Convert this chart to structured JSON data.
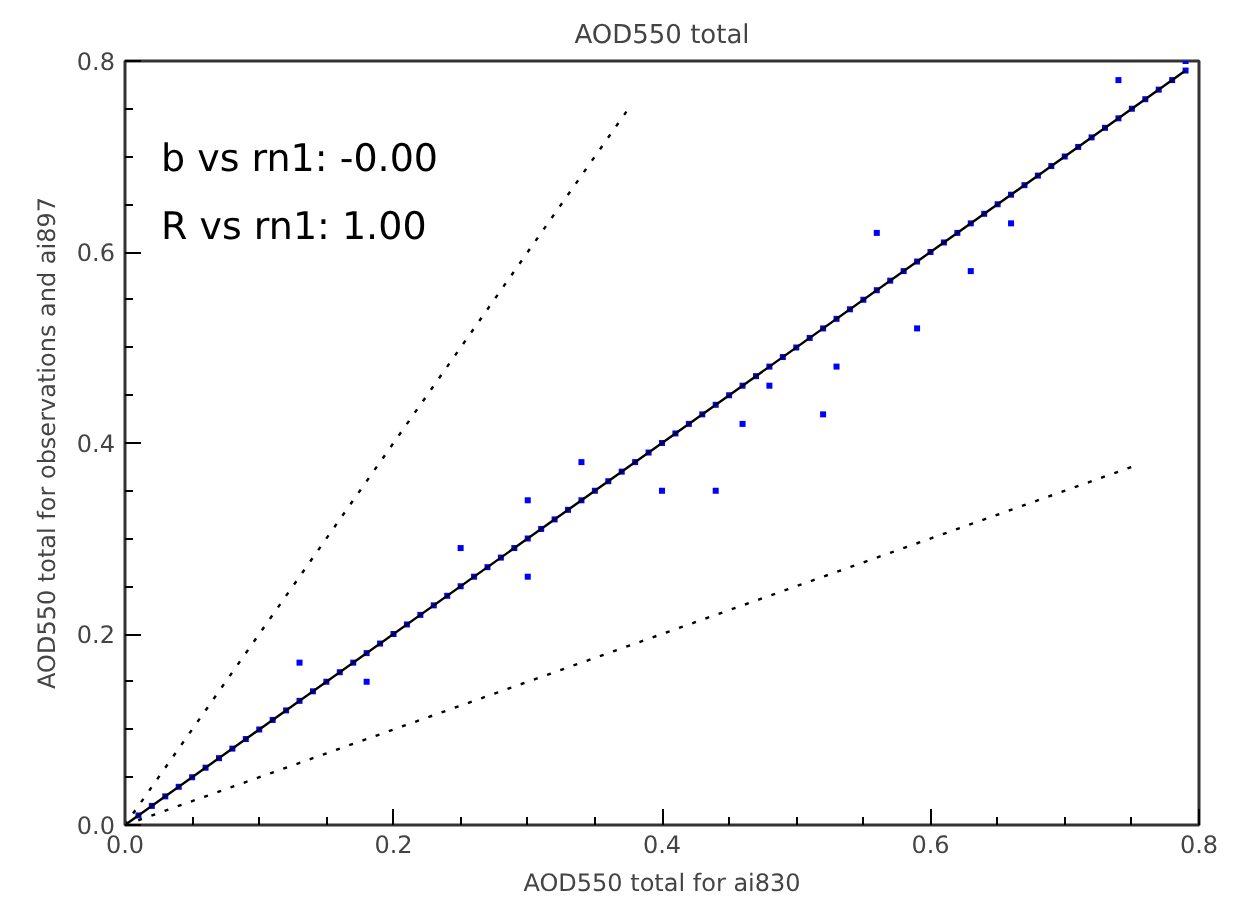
{
  "chart_data": {
    "type": "scatter",
    "title": "AOD550 total",
    "xlabel": "AOD550 total for ai830",
    "ylabel": "AOD550 total for observations and ai897",
    "xlim": [
      0,
      0.8
    ],
    "ylim": [
      0,
      0.8
    ],
    "xticks": [
      {
        "value": 0,
        "label": "0.0"
      },
      {
        "value": 0.2,
        "label": "0.2"
      },
      {
        "value": 0.4,
        "label": "0.4"
      },
      {
        "value": 0.6,
        "label": "0.6"
      },
      {
        "value": 0.8,
        "label": "0.8"
      }
    ],
    "yticks": [
      {
        "value": 0,
        "label": "0.0"
      },
      {
        "value": 0.2,
        "label": "0.2"
      },
      {
        "value": 0.4,
        "label": "0.4"
      },
      {
        "value": 0.6,
        "label": "0.6"
      },
      {
        "value": 0.8,
        "label": "0.8"
      }
    ],
    "grid": false,
    "annotations": [
      "b vs rn1:      -0.00",
      "R vs rn1:       1.00"
    ],
    "series": [
      {
        "marker": "square",
        "color": "#0000ff",
        "x": [
          0.01,
          0.02,
          0.03,
          0.04,
          0.05,
          0.06,
          0.07,
          0.08,
          0.09,
          0.1,
          0.11,
          0.12,
          0.13,
          0.14,
          0.15,
          0.16,
          0.17,
          0.18,
          0.19,
          0.2,
          0.21,
          0.22,
          0.23,
          0.24,
          0.25,
          0.26,
          0.27,
          0.28,
          0.29,
          0.3,
          0.31,
          0.32,
          0.33,
          0.34,
          0.35,
          0.36,
          0.37,
          0.38,
          0.39,
          0.4,
          0.41,
          0.42,
          0.43,
          0.44,
          0.45,
          0.46,
          0.47,
          0.48,
          0.49,
          0.5,
          0.51,
          0.52,
          0.53,
          0.54,
          0.55,
          0.56,
          0.57,
          0.58,
          0.59,
          0.6,
          0.61,
          0.62,
          0.63,
          0.64,
          0.65,
          0.66,
          0.67,
          0.68,
          0.69,
          0.7,
          0.71,
          0.72,
          0.73,
          0.74,
          0.75,
          0.76,
          0.77,
          0.78,
          0.79,
          0.13,
          0.18,
          0.25,
          0.3,
          0.34,
          0.4,
          0.44,
          0.46,
          0.48,
          0.52,
          0.53,
          0.56,
          0.63,
          0.66,
          0.74,
          0.79,
          0.59,
          0.3
        ],
        "values": [
          0.01,
          0.02,
          0.03,
          0.04,
          0.05,
          0.06,
          0.07,
          0.08,
          0.09,
          0.1,
          0.11,
          0.12,
          0.13,
          0.14,
          0.15,
          0.16,
          0.17,
          0.18,
          0.19,
          0.2,
          0.21,
          0.22,
          0.23,
          0.24,
          0.25,
          0.26,
          0.27,
          0.28,
          0.29,
          0.3,
          0.31,
          0.32,
          0.33,
          0.34,
          0.35,
          0.36,
          0.37,
          0.38,
          0.39,
          0.4,
          0.41,
          0.42,
          0.43,
          0.44,
          0.45,
          0.46,
          0.47,
          0.48,
          0.49,
          0.5,
          0.51,
          0.52,
          0.53,
          0.54,
          0.55,
          0.56,
          0.57,
          0.58,
          0.59,
          0.6,
          0.61,
          0.62,
          0.63,
          0.64,
          0.65,
          0.66,
          0.67,
          0.68,
          0.69,
          0.7,
          0.71,
          0.72,
          0.73,
          0.74,
          0.75,
          0.76,
          0.77,
          0.78,
          0.79,
          0.17,
          0.15,
          0.29,
          0.26,
          0.38,
          0.35,
          0.35,
          0.42,
          0.46,
          0.43,
          0.48,
          0.62,
          0.58,
          0.63,
          0.78,
          0.8,
          0.52,
          0.34
        ]
      },
      {
        "type": "line",
        "color": "#000000",
        "line_style": "solid",
        "x": [
          0,
          0.79
        ],
        "values": [
          0,
          0.79
        ]
      },
      {
        "type": "line",
        "color": "#000000",
        "line_style": "dotted",
        "x": [
          0,
          0.375
        ],
        "values": [
          0,
          0.75
        ]
      },
      {
        "type": "line",
        "color": "#000000",
        "line_style": "dotted",
        "x": [
          0,
          0.75
        ],
        "values": [
          0,
          0.375
        ]
      }
    ]
  }
}
